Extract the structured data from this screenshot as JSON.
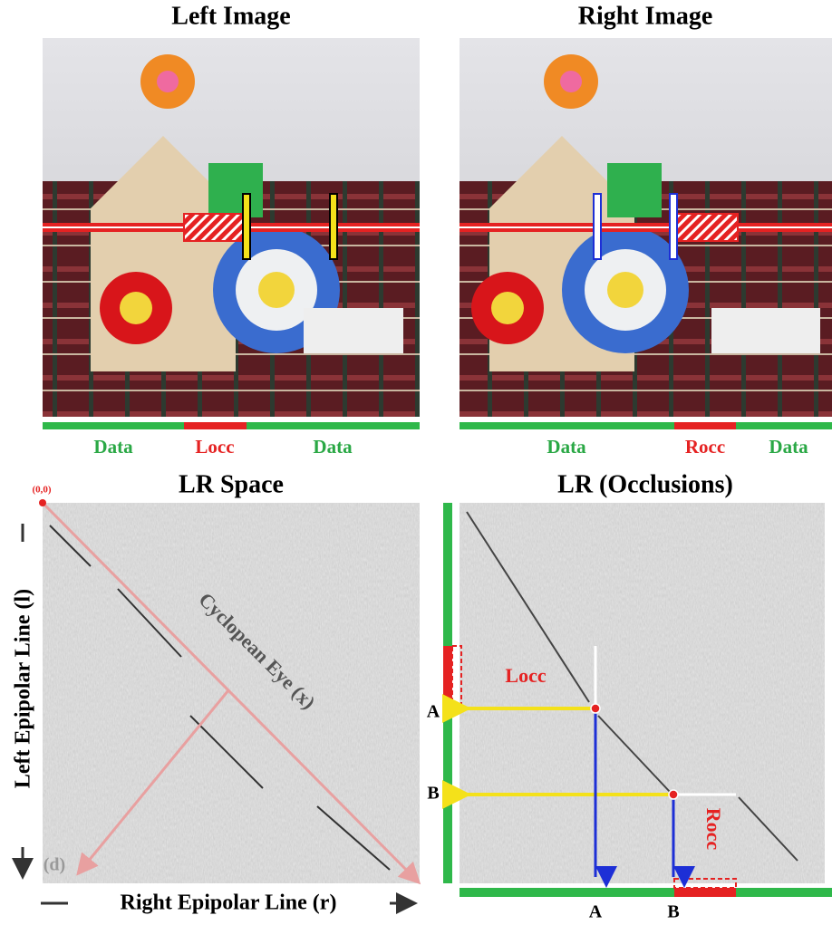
{
  "left_image": {
    "title": "Left Image",
    "labels": [
      "Data",
      "Locc",
      "Data"
    ]
  },
  "right_image": {
    "title": "Right Image",
    "labels": [
      "Data",
      "Rocc",
      "Data"
    ]
  },
  "lr_space": {
    "title": "LR Space",
    "origin": "(0,0)",
    "y_axis": "Left Epipolar Line (l)",
    "x_axis": "Right Epipolar Line (r)",
    "diagonal": "Cyclopean Eye (x)",
    "depth": "(d)"
  },
  "lr_occlusions": {
    "title": "LR (Occlusions)",
    "locc": "Locc",
    "rocc": "Rocc",
    "left_points": [
      "A",
      "B"
    ],
    "bottom_points": [
      "A",
      "B"
    ]
  }
}
